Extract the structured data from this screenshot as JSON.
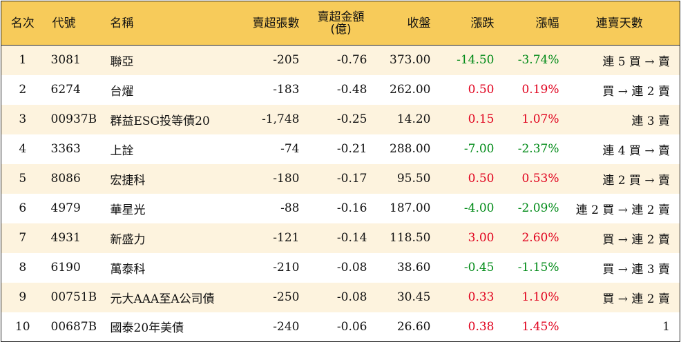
{
  "headers": {
    "rank": "名次",
    "code": "代號",
    "name": "名稱",
    "net_sell_lots": "賣超張數",
    "net_sell_amount_line1": "賣超金額",
    "net_sell_amount_line2": "(億)",
    "close": "收盤",
    "change": "漲跌",
    "change_pct": "漲幅",
    "streak": "連賣天數"
  },
  "rows": [
    {
      "rank": "1",
      "code": "3081",
      "name": "聯亞",
      "lots": "-205",
      "amount": "-0.76",
      "close": "373.00",
      "change": "-14.50",
      "pct": "-3.74%",
      "direction": "down",
      "streak": "連 5 買 → 賣"
    },
    {
      "rank": "2",
      "code": "6274",
      "name": "台燿",
      "lots": "-183",
      "amount": "-0.48",
      "close": "262.00",
      "change": "0.50",
      "pct": "0.19%",
      "direction": "up",
      "streak": "買 → 連 2 賣"
    },
    {
      "rank": "3",
      "code": "00937B",
      "name": "群益ESG投等債20",
      "lots": "-1,748",
      "amount": "-0.25",
      "close": "14.20",
      "change": "0.15",
      "pct": "1.07%",
      "direction": "up",
      "streak": "連 3 賣"
    },
    {
      "rank": "4",
      "code": "3363",
      "name": "上詮",
      "lots": "-74",
      "amount": "-0.21",
      "close": "288.00",
      "change": "-7.00",
      "pct": "-2.37%",
      "direction": "down",
      "streak": "連 4 買 → 賣"
    },
    {
      "rank": "5",
      "code": "8086",
      "name": "宏捷科",
      "lots": "-180",
      "amount": "-0.17",
      "close": "95.50",
      "change": "0.50",
      "pct": "0.53%",
      "direction": "up",
      "streak": "連 2 買 → 賣"
    },
    {
      "rank": "6",
      "code": "4979",
      "name": "華星光",
      "lots": "-88",
      "amount": "-0.16",
      "close": "187.00",
      "change": "-4.00",
      "pct": "-2.09%",
      "direction": "down",
      "streak": "連 2 買 → 連 2 賣"
    },
    {
      "rank": "7",
      "code": "4931",
      "name": "新盛力",
      "lots": "-121",
      "amount": "-0.14",
      "close": "118.50",
      "change": "3.00",
      "pct": "2.60%",
      "direction": "up",
      "streak": "買 → 連 2 賣"
    },
    {
      "rank": "8",
      "code": "6190",
      "name": "萬泰科",
      "lots": "-210",
      "amount": "-0.08",
      "close": "38.60",
      "change": "-0.45",
      "pct": "-1.15%",
      "direction": "down",
      "streak": "買 → 連 3 賣"
    },
    {
      "rank": "9",
      "code": "00751B",
      "name": "元大AAA至A公司債",
      "lots": "-250",
      "amount": "-0.08",
      "close": "30.45",
      "change": "0.33",
      "pct": "1.10%",
      "direction": "up",
      "streak": "買 → 連 2 賣"
    },
    {
      "rank": "10",
      "code": "00687B",
      "name": "國泰20年美債",
      "lots": "-240",
      "amount": "-0.06",
      "close": "26.60",
      "change": "0.38",
      "pct": "1.45%",
      "direction": "up",
      "streak": "1"
    }
  ],
  "colors": {
    "header_bg": "#f7cb5a",
    "row_odd_bg": "#fdf3de",
    "row_even_bg": "#ffffff",
    "up": "#e0001c",
    "down": "#008a17"
  }
}
